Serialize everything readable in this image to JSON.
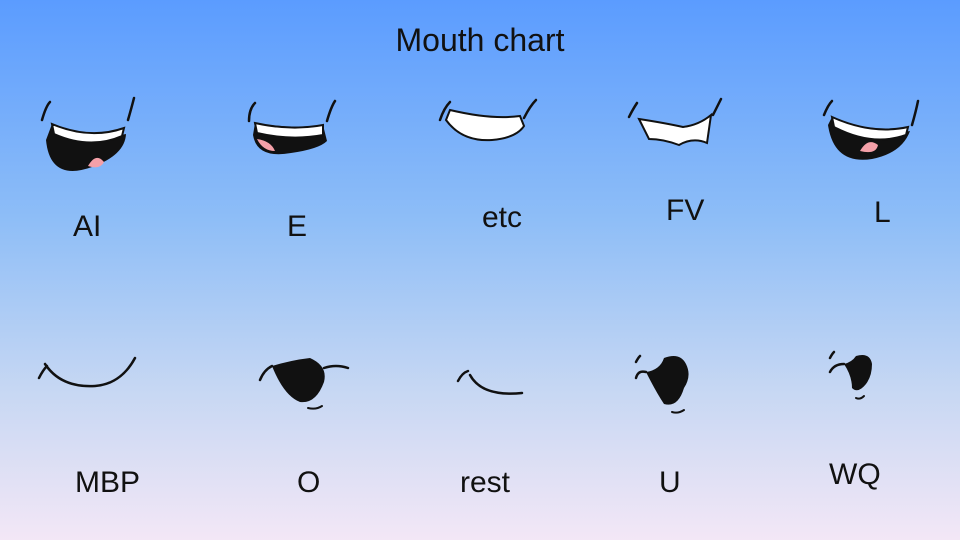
{
  "title": "Mouth chart",
  "shapes": [
    {
      "label": "AI",
      "icon": "mouth-ai-icon"
    },
    {
      "label": "E",
      "icon": "mouth-e-icon"
    },
    {
      "label": "etc",
      "icon": "mouth-etc-icon"
    },
    {
      "label": "FV",
      "icon": "mouth-fv-icon"
    },
    {
      "label": "L",
      "icon": "mouth-l-icon"
    },
    {
      "label": "MBP",
      "icon": "mouth-mbp-icon"
    },
    {
      "label": "O",
      "icon": "mouth-o-icon"
    },
    {
      "label": "rest",
      "icon": "mouth-rest-icon"
    },
    {
      "label": "U",
      "icon": "mouth-u-icon"
    },
    {
      "label": "WQ",
      "icon": "mouth-wq-icon"
    }
  ],
  "colors": {
    "ink": "#111111",
    "tongue": "#f4a0a8",
    "teeth": "#ffffff"
  }
}
